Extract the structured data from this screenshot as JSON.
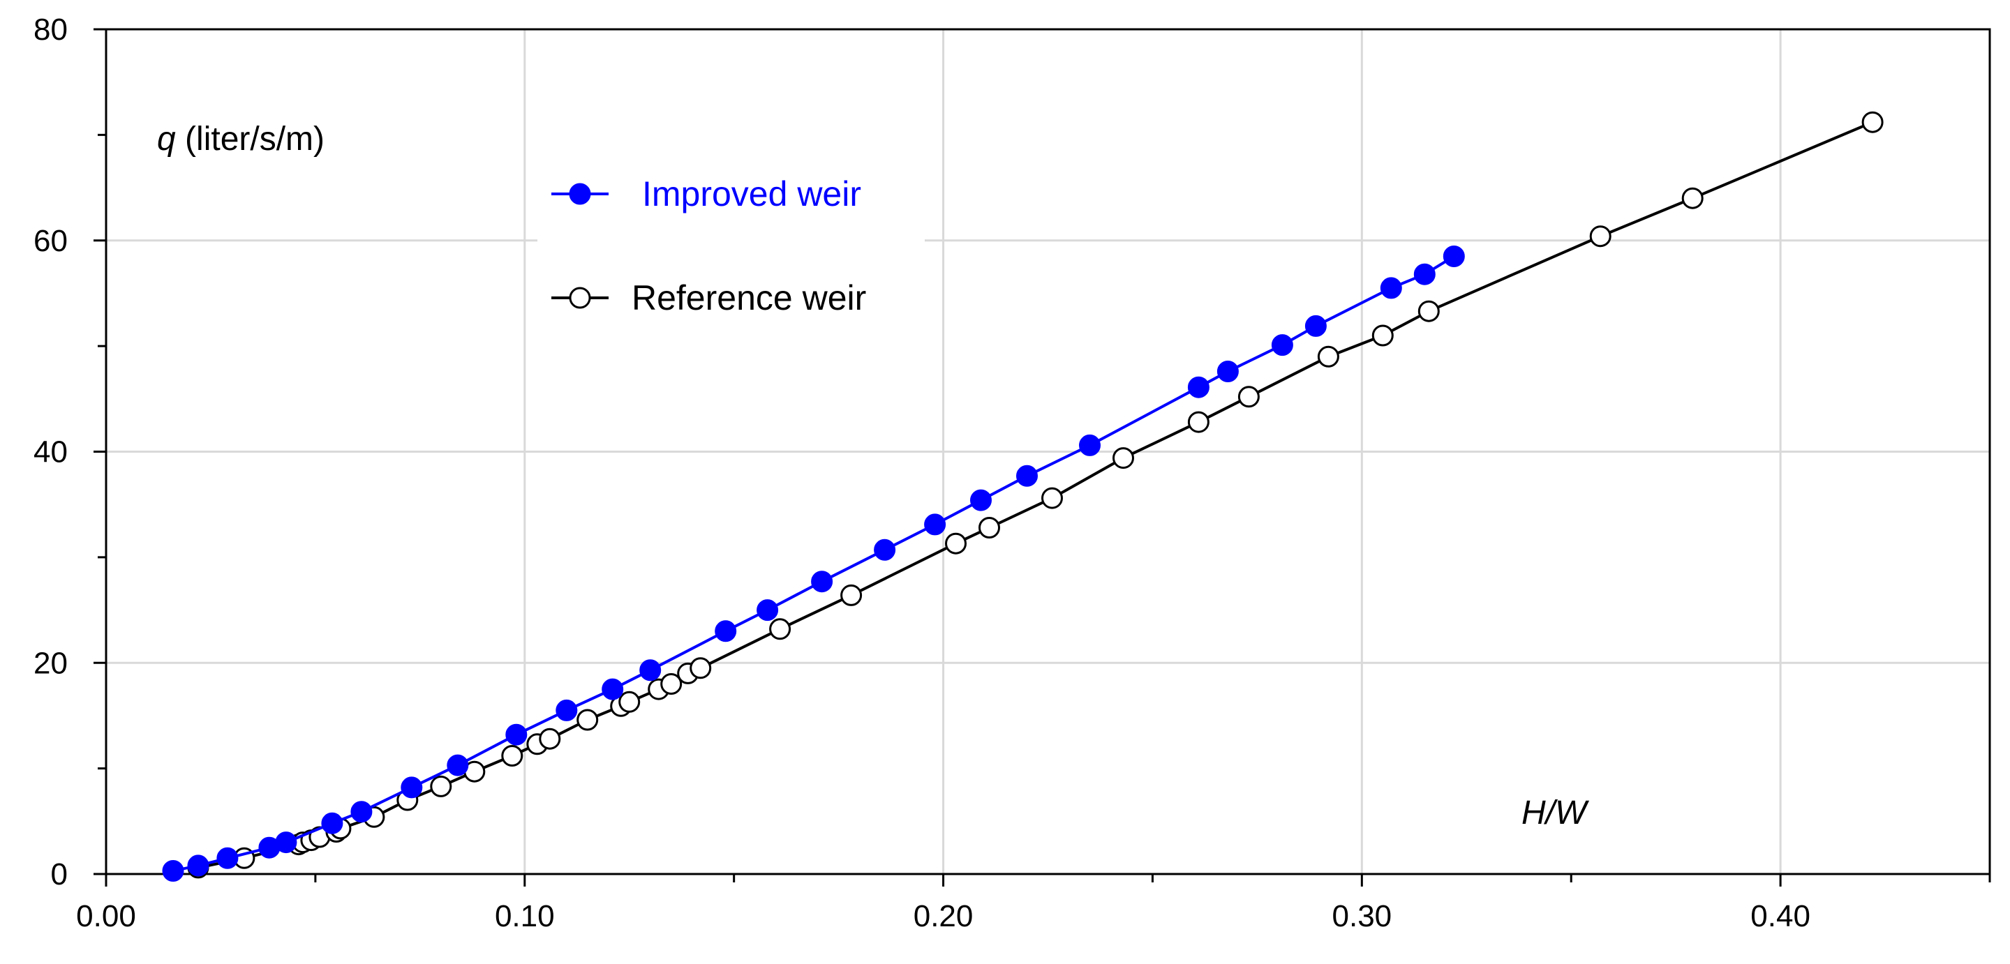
{
  "chart_data": {
    "type": "scatter",
    "ylabel": {
      "var": "q",
      "unit": " (liter/s/m)"
    },
    "xlabel": "H/W",
    "xlim": [
      0.0,
      0.45
    ],
    "ylim": [
      0,
      80
    ],
    "xticks": [
      "0.00",
      "0.10",
      "0.20",
      "0.30",
      "0.40"
    ],
    "yticks": [
      "0",
      "20",
      "40",
      "60",
      "80"
    ],
    "grid": true,
    "legend_position": "top-left",
    "series": [
      {
        "name": "Improved weir",
        "color": "#0000ff",
        "marker": "filled-circle",
        "x": [
          0.016,
          0.022,
          0.029,
          0.039,
          0.043,
          0.054,
          0.061,
          0.073,
          0.084,
          0.098,
          0.11,
          0.121,
          0.13,
          0.148,
          0.158,
          0.171,
          0.186,
          0.198,
          0.209,
          0.22,
          0.235,
          0.261,
          0.268,
          0.281,
          0.289,
          0.307,
          0.315,
          0.322
        ],
        "y": [
          0.3,
          0.8,
          1.5,
          2.5,
          3.0,
          4.8,
          5.9,
          8.2,
          10.3,
          13.2,
          15.5,
          17.5,
          19.3,
          23.0,
          25.0,
          27.7,
          30.7,
          33.1,
          35.4,
          37.7,
          40.6,
          46.1,
          47.6,
          50.1,
          51.9,
          55.5,
          56.8,
          58.5
        ]
      },
      {
        "name": "Reference weir",
        "color": "#000000",
        "marker": "open-circle",
        "x": [
          0.022,
          0.033,
          0.046,
          0.047,
          0.049,
          0.051,
          0.055,
          0.056,
          0.064,
          0.072,
          0.08,
          0.088,
          0.097,
          0.103,
          0.106,
          0.115,
          0.123,
          0.125,
          0.132,
          0.135,
          0.139,
          0.142,
          0.161,
          0.178,
          0.203,
          0.211,
          0.226,
          0.243,
          0.261,
          0.273,
          0.292,
          0.305,
          0.316,
          0.357,
          0.379,
          0.422
        ],
        "y": [
          0.6,
          1.5,
          2.8,
          3.0,
          3.2,
          3.5,
          4.0,
          4.3,
          5.4,
          7.0,
          8.3,
          9.7,
          11.2,
          12.3,
          12.8,
          14.6,
          15.9,
          16.3,
          17.5,
          18.0,
          19.0,
          19.5,
          23.2,
          26.4,
          31.3,
          32.8,
          35.6,
          39.4,
          42.8,
          45.2,
          49.0,
          51.0,
          53.3,
          60.4,
          64.0,
          71.2
        ]
      }
    ]
  }
}
